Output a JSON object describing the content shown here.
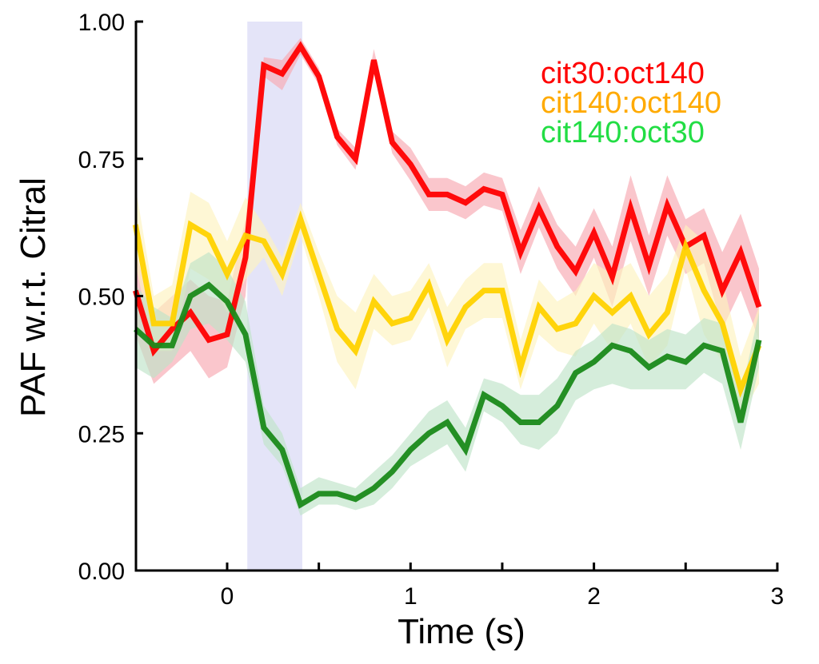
{
  "chart_data": {
    "type": "line",
    "title": "",
    "xlabel": "Time (s)",
    "ylabel": "PAF w.r.t. Citral",
    "xlim": [
      -0.5,
      3.0
    ],
    "ylim": [
      0.0,
      1.0
    ],
    "xticks": [
      0,
      1,
      2,
      3
    ],
    "xtick_labels": [
      "0",
      "1",
      "2",
      "3"
    ],
    "xminor_ticks": [
      0.5,
      1.5,
      2.5
    ],
    "yticks": [
      0.0,
      0.25,
      0.5,
      0.75,
      1.0
    ],
    "ytick_labels": [
      "0.00",
      "0.25",
      "0.50",
      "0.75",
      "1.00"
    ],
    "grid": false,
    "legend_position": "top-right",
    "stimulus_window": {
      "start": 0.11,
      "end": 0.41,
      "color": "#e4e4f8"
    },
    "x": [
      -0.5,
      -0.4,
      -0.3,
      -0.2,
      -0.1,
      0.0,
      0.1,
      0.2,
      0.3,
      0.4,
      0.5,
      0.6,
      0.7,
      0.8,
      0.9,
      1.0,
      1.1,
      1.2,
      1.3,
      1.4,
      1.5,
      1.6,
      1.7,
      1.8,
      1.9,
      2.0,
      2.1,
      2.2,
      2.3,
      2.4,
      2.5,
      2.6,
      2.7,
      2.8,
      2.9
    ],
    "series": [
      {
        "name": "cit30:oct140",
        "color": "#ff0000",
        "band_color": "#f7a8b0",
        "values": [
          0.51,
          0.4,
          0.44,
          0.47,
          0.42,
          0.43,
          0.57,
          0.92,
          0.905,
          0.955,
          0.9,
          0.79,
          0.75,
          0.93,
          0.78,
          0.74,
          0.685,
          0.685,
          0.67,
          0.695,
          0.685,
          0.58,
          0.66,
          0.59,
          0.545,
          0.615,
          0.535,
          0.66,
          0.555,
          0.665,
          0.59,
          0.61,
          0.51,
          0.58,
          0.48
        ],
        "lower": [
          0.43,
          0.34,
          0.37,
          0.4,
          0.35,
          0.37,
          0.5,
          0.9,
          0.875,
          0.94,
          0.885,
          0.775,
          0.73,
          0.91,
          0.76,
          0.71,
          0.655,
          0.655,
          0.64,
          0.665,
          0.655,
          0.54,
          0.625,
          0.55,
          0.5,
          0.57,
          0.48,
          0.6,
          0.5,
          0.61,
          0.54,
          0.56,
          0.44,
          0.51,
          0.42
        ],
        "upper": [
          0.58,
          0.47,
          0.5,
          0.53,
          0.5,
          0.49,
          0.64,
          0.935,
          0.93,
          0.97,
          0.915,
          0.805,
          0.77,
          0.95,
          0.8,
          0.77,
          0.715,
          0.715,
          0.7,
          0.725,
          0.715,
          0.62,
          0.7,
          0.63,
          0.59,
          0.66,
          0.59,
          0.72,
          0.61,
          0.72,
          0.64,
          0.66,
          0.58,
          0.65,
          0.55
        ]
      },
      {
        "name": "cit140:oct140",
        "color": "#ffd200",
        "legend_color": "#ffaa00",
        "band_color": "#fdf3bf",
        "values": [
          0.63,
          0.45,
          0.45,
          0.63,
          0.61,
          0.54,
          0.61,
          0.6,
          0.54,
          0.64,
          0.54,
          0.44,
          0.4,
          0.49,
          0.45,
          0.46,
          0.52,
          0.42,
          0.48,
          0.51,
          0.51,
          0.37,
          0.48,
          0.44,
          0.45,
          0.5,
          0.47,
          0.5,
          0.43,
          0.47,
          0.59,
          0.51,
          0.45,
          0.33,
          0.41
        ],
        "lower": [
          0.56,
          0.4,
          0.4,
          0.55,
          0.53,
          0.47,
          0.53,
          0.57,
          0.5,
          0.61,
          0.5,
          0.38,
          0.33,
          0.44,
          0.41,
          0.42,
          0.48,
          0.37,
          0.44,
          0.46,
          0.46,
          0.33,
          0.43,
          0.4,
          0.39,
          0.45,
          0.4,
          0.45,
          0.37,
          0.41,
          0.55,
          0.43,
          0.38,
          0.28,
          0.34
        ],
        "upper": [
          0.7,
          0.5,
          0.52,
          0.69,
          0.67,
          0.6,
          0.68,
          0.63,
          0.57,
          0.67,
          0.58,
          0.5,
          0.47,
          0.54,
          0.5,
          0.51,
          0.56,
          0.48,
          0.53,
          0.56,
          0.56,
          0.42,
          0.53,
          0.49,
          0.51,
          0.56,
          0.54,
          0.56,
          0.5,
          0.54,
          0.63,
          0.6,
          0.53,
          0.39,
          0.48
        ]
      },
      {
        "name": "cit140:oct30",
        "color": "#1a8a1a",
        "legend_color": "#22dd44",
        "band_color": "#bfe3c8",
        "values": [
          0.44,
          0.41,
          0.41,
          0.5,
          0.52,
          0.49,
          0.43,
          0.26,
          0.22,
          0.12,
          0.14,
          0.14,
          0.13,
          0.15,
          0.18,
          0.22,
          0.25,
          0.27,
          0.22,
          0.32,
          0.3,
          0.27,
          0.27,
          0.3,
          0.36,
          0.38,
          0.41,
          0.4,
          0.37,
          0.39,
          0.38,
          0.41,
          0.4,
          0.27,
          0.42
        ],
        "lower": [
          0.37,
          0.35,
          0.38,
          0.44,
          0.45,
          0.42,
          0.38,
          0.23,
          0.19,
          0.1,
          0.12,
          0.12,
          0.11,
          0.12,
          0.15,
          0.19,
          0.21,
          0.23,
          0.18,
          0.29,
          0.27,
          0.23,
          0.22,
          0.25,
          0.31,
          0.33,
          0.34,
          0.33,
          0.33,
          0.33,
          0.33,
          0.36,
          0.34,
          0.22,
          0.37
        ],
        "upper": [
          0.52,
          0.48,
          0.46,
          0.56,
          0.58,
          0.55,
          0.49,
          0.3,
          0.25,
          0.15,
          0.17,
          0.16,
          0.15,
          0.18,
          0.21,
          0.25,
          0.29,
          0.31,
          0.26,
          0.35,
          0.34,
          0.32,
          0.32,
          0.35,
          0.4,
          0.42,
          0.45,
          0.44,
          0.42,
          0.44,
          0.43,
          0.46,
          0.45,
          0.32,
          0.47
        ]
      }
    ]
  }
}
